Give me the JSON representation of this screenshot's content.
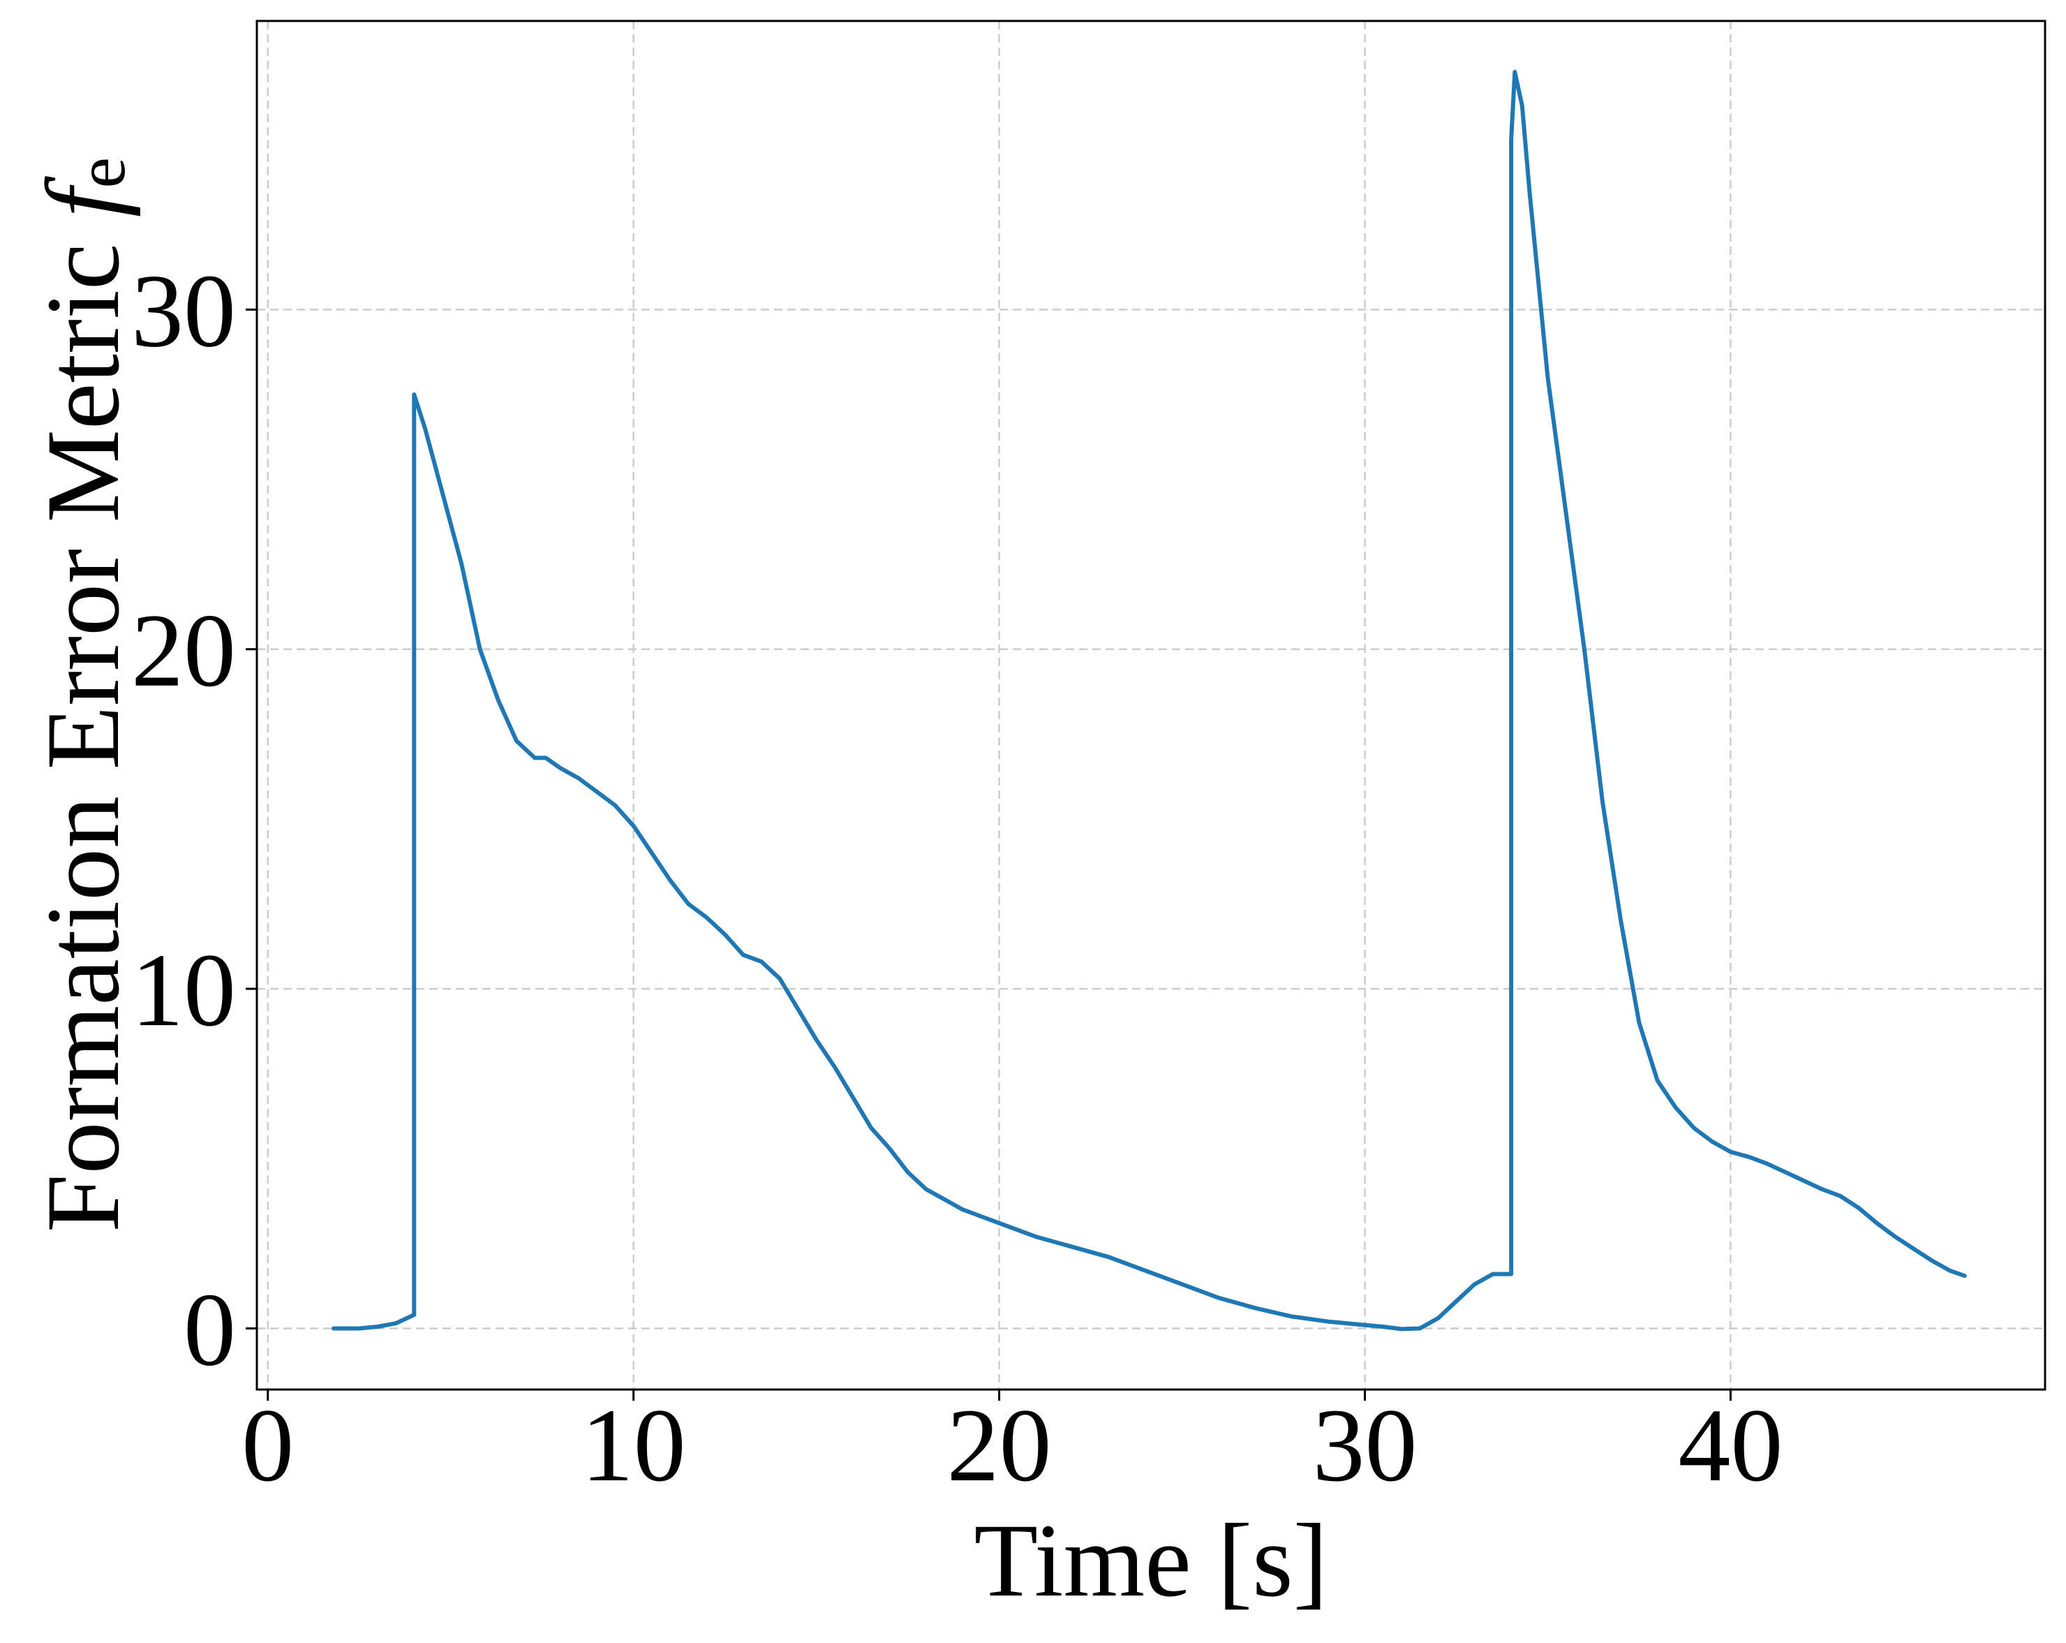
{
  "chart_data": {
    "type": "line",
    "xlabel": "Time [s]",
    "ylabel": "Formation Error Metric ",
    "ylabel_symbol": "f",
    "ylabel_subscript": "e",
    "xlim": [
      -0.3,
      48.6
    ],
    "ylim": [
      -1.8,
      38.5
    ],
    "xticks": [
      0,
      10,
      20,
      30,
      40
    ],
    "yticks": [
      0,
      10,
      20,
      30
    ],
    "grid": true,
    "line_color": "#1f77b4",
    "series": [
      {
        "x": [
          1.8,
          2.5,
          3.0,
          3.5,
          3.8,
          4.0,
          4.0,
          4.3,
          4.8,
          5.3,
          5.8,
          6.3,
          6.8,
          7.3,
          7.6,
          8.0,
          8.5,
          9.0,
          9.5,
          10.0,
          10.5,
          11.0,
          11.5,
          12.0,
          12.5,
          13.0,
          13.5,
          14.0,
          14.5,
          15.0,
          15.5,
          16.0,
          16.5,
          17.0,
          17.5,
          18.0,
          18.5,
          19.0,
          19.5,
          20.0,
          21.0,
          22.0,
          23.0,
          24.0,
          25.0,
          26.0,
          27.0,
          28.0,
          29.0,
          30.0,
          30.5,
          31.0,
          31.5,
          32.0,
          32.5,
          33.0,
          33.5,
          34.0,
          34.0,
          34.1,
          34.3,
          34.5,
          35.0,
          35.5,
          36.0,
          36.5,
          37.0,
          37.5,
          38.0,
          38.5,
          39.0,
          39.5,
          40.0,
          40.5,
          41.0,
          41.5,
          42.0,
          42.5,
          43.0,
          43.5,
          44.0,
          44.5,
          45.0,
          45.5,
          46.0,
          46.4
        ],
        "y": [
          0.0,
          0.0,
          0.05,
          0.15,
          0.3,
          0.4,
          27.5,
          26.5,
          24.5,
          22.5,
          20.0,
          18.5,
          17.3,
          16.8,
          16.8,
          16.5,
          16.2,
          15.8,
          15.4,
          14.8,
          14.0,
          13.2,
          12.5,
          12.1,
          11.6,
          11.0,
          10.8,
          10.3,
          9.4,
          8.5,
          7.7,
          6.8,
          5.9,
          5.3,
          4.6,
          4.1,
          3.8,
          3.5,
          3.3,
          3.1,
          2.7,
          2.4,
          2.1,
          1.7,
          1.3,
          0.9,
          0.6,
          0.35,
          0.2,
          0.1,
          0.05,
          -0.02,
          0.0,
          0.3,
          0.8,
          1.3,
          1.6,
          1.6,
          35.0,
          37.0,
          36.0,
          33.5,
          28.0,
          24.0,
          20.0,
          15.5,
          12.0,
          9.0,
          7.3,
          6.5,
          5.9,
          5.5,
          5.2,
          5.05,
          4.85,
          4.6,
          4.35,
          4.1,
          3.9,
          3.55,
          3.1,
          2.7,
          2.35,
          2.0,
          1.7,
          1.55
        ]
      }
    ]
  }
}
